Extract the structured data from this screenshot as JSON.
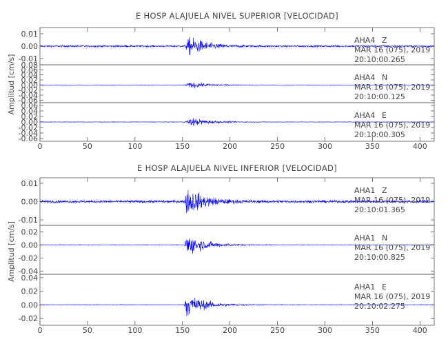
{
  "colors": {
    "trace": "#0000ff",
    "axis": "#555555",
    "text": "#444444"
  },
  "chart_data": [
    {
      "type": "line",
      "title": "E HOSP ALAJUELA NIVEL SUPERIOR [VELOCIDAD]",
      "ylabel": "Amplitud [cm/s]",
      "xlabel": "",
      "xlim": [
        0,
        415
      ],
      "xticks": [
        "0",
        "50",
        "100",
        "150",
        "200",
        "250",
        "300",
        "350",
        "400"
      ],
      "grid": false,
      "panels": [
        {
          "station": "AHA4",
          "component": "Z",
          "date": "MAR 16 (075), 2019",
          "time": "20:10:00.265",
          "ylim": [
            -0.015,
            0.015
          ],
          "yticks": [
            "0.01",
            "0.00",
            "-0.01"
          ],
          "onset_s": 152,
          "peak_s": 158,
          "peak_amp": 0.012,
          "noise_amp": 0.0012
        },
        {
          "station": "AHA4",
          "component": "N",
          "date": "MAR 16 (075), 2019",
          "time": "20:10:00.125",
          "ylim": [
            -0.07,
            0.08
          ],
          "yticks": [
            "0.08",
            "0.06",
            "0.04",
            "0.02",
            "0.00",
            "-0.02",
            "-0.04",
            "-0.06"
          ],
          "onset_s": 152,
          "peak_s": 160,
          "peak_amp": 0.02,
          "noise_amp": 0.0015
        },
        {
          "station": "AHA4",
          "component": "E",
          "date": "MAR 16 (075), 2019",
          "time": "20:10:00.305",
          "ylim": [
            -0.07,
            0.07
          ],
          "yticks": [
            "0.06",
            "0.04",
            "0.02",
            "0.00",
            "-0.02",
            "-0.04",
            "-0.06"
          ],
          "onset_s": 152,
          "peak_s": 160,
          "peak_amp": 0.025,
          "noise_amp": 0.0015
        }
      ]
    },
    {
      "type": "line",
      "title": "E HOSP ALAJUELA NIVEL INFERIOR [VELOCIDAD]",
      "ylabel": "Amplitud [cm/s]",
      "xlabel": "",
      "xlim": [
        0,
        415
      ],
      "xticks": [
        "0",
        "50",
        "100",
        "150",
        "200",
        "250",
        "300",
        "350",
        "400"
      ],
      "grid": false,
      "panels": [
        {
          "station": "AHA1",
          "component": "Z",
          "date": "MAR 16 (075), 2019",
          "time": "20:10:01.365",
          "ylim": [
            -0.013,
            0.013
          ],
          "yticks": [
            "0.01",
            "0.00",
            "-0.01"
          ],
          "onset_s": 152,
          "peak_s": 155,
          "peak_amp": 0.012,
          "noise_amp": 0.0012
        },
        {
          "station": "AHA1",
          "component": "N",
          "date": "MAR 16 (075), 2019",
          "time": "20:10:00.825",
          "ylim": [
            -0.045,
            0.03
          ],
          "yticks": [
            "0.02",
            "0.00",
            "-0.02",
            "-0.04"
          ],
          "onset_s": 152,
          "peak_s": 154,
          "peak_amp": 0.03,
          "noise_amp": 0.0008
        },
        {
          "station": "AHA1",
          "component": "E",
          "date": "MAR 16 (075), 2019",
          "time": "20:10:02.275",
          "ylim": [
            -0.03,
            0.045
          ],
          "yticks": [
            "0.04",
            "0.02",
            "0.00",
            "-0.02"
          ],
          "onset_s": 152,
          "peak_s": 154,
          "peak_amp": 0.03,
          "noise_amp": 0.0008
        }
      ]
    }
  ]
}
